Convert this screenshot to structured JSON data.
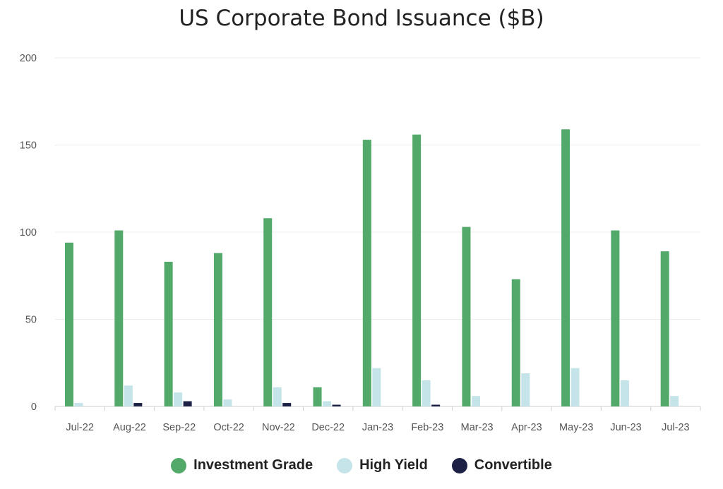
{
  "chart_data": {
    "type": "bar",
    "title": "US Corporate Bond Issuance ($B)",
    "categories": [
      "Jul-22",
      "Aug-22",
      "Sep-22",
      "Oct-22",
      "Nov-22",
      "Dec-22",
      "Jan-23",
      "Feb-23",
      "Mar-23",
      "Apr-23",
      "May-23",
      "Jun-23",
      "Jul-23"
    ],
    "series": [
      {
        "name": "Investment Grade",
        "color": "#52a96a",
        "values": [
          94,
          101,
          83,
          88,
          108,
          11,
          153,
          156,
          103,
          73,
          159,
          101,
          89
        ]
      },
      {
        "name": "High Yield",
        "color": "#c4e4e9",
        "values": [
          2,
          12,
          8,
          4,
          11,
          3,
          22,
          15,
          6,
          19,
          22,
          15,
          6
        ]
      },
      {
        "name": "Convertible",
        "color": "#1c2145",
        "values": [
          0,
          2,
          3,
          0,
          2,
          1,
          0,
          1,
          0,
          0,
          0,
          0,
          0
        ]
      }
    ],
    "ylim": [
      0,
      200
    ],
    "yticks": [
      "0",
      "50",
      "100",
      "150",
      "200"
    ],
    "grid": true,
    "legend_position": "bottom"
  }
}
